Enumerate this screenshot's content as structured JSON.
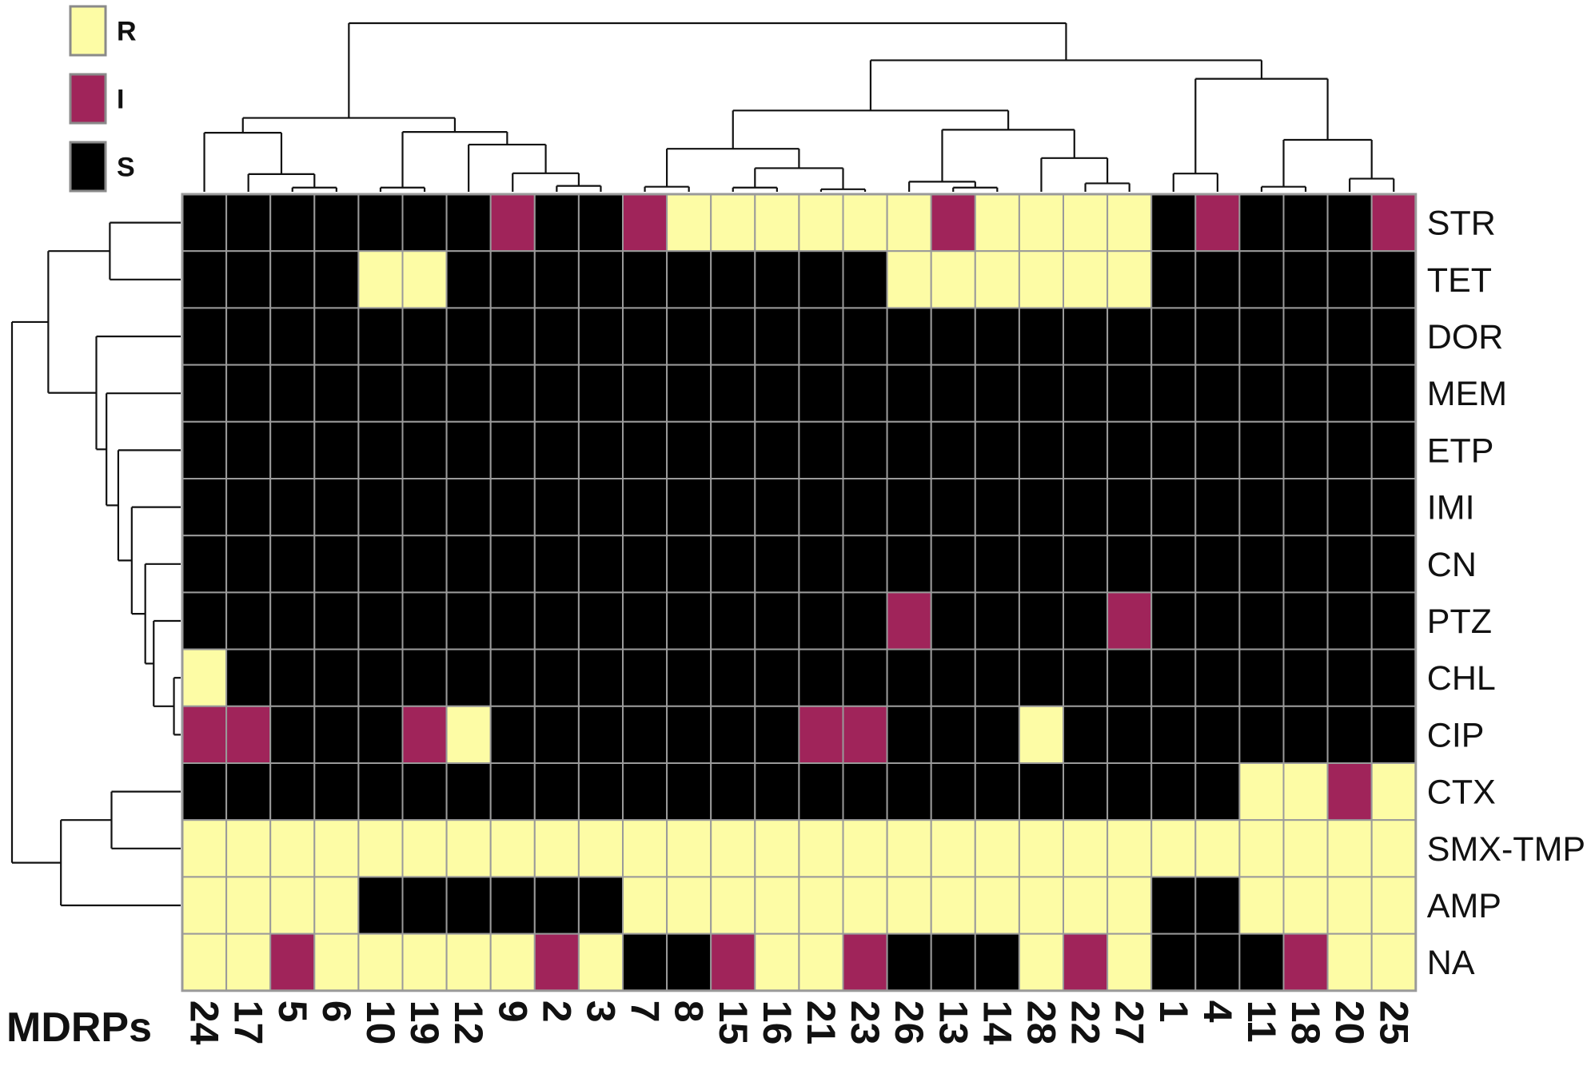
{
  "chart_data": {
    "type": "heatmap",
    "title": "",
    "xlabel": "MDRPs",
    "ylabel": "",
    "columns": [
      "24",
      "17",
      "5",
      "6",
      "10",
      "19",
      "12",
      "9",
      "2",
      "3",
      "7",
      "8",
      "15",
      "16",
      "21",
      "23",
      "26",
      "13",
      "14",
      "28",
      "22",
      "27",
      "1",
      "4",
      "11",
      "18",
      "20",
      "25"
    ],
    "rows": [
      "STR",
      "TET",
      "DOR",
      "MEM",
      "ETP",
      "IMI",
      "CN",
      "PTZ",
      "CHL",
      "CIP",
      "CTX",
      "SMX-TMP",
      "AMP",
      "NA"
    ],
    "values": [
      [
        "S",
        "S",
        "S",
        "S",
        "S",
        "S",
        "S",
        "I",
        "S",
        "S",
        "I",
        "R",
        "R",
        "R",
        "R",
        "R",
        "R",
        "I",
        "R",
        "R",
        "R",
        "R",
        "S",
        "I",
        "S",
        "S",
        "S",
        "I"
      ],
      [
        "S",
        "S",
        "S",
        "S",
        "R",
        "R",
        "S",
        "S",
        "S",
        "S",
        "S",
        "S",
        "S",
        "S",
        "S",
        "S",
        "R",
        "R",
        "R",
        "R",
        "R",
        "R",
        "S",
        "S",
        "S",
        "S",
        "S",
        "S"
      ],
      [
        "S",
        "S",
        "S",
        "S",
        "S",
        "S",
        "S",
        "S",
        "S",
        "S",
        "S",
        "S",
        "S",
        "S",
        "S",
        "S",
        "S",
        "S",
        "S",
        "S",
        "S",
        "S",
        "S",
        "S",
        "S",
        "S",
        "S",
        "S"
      ],
      [
        "S",
        "S",
        "S",
        "S",
        "S",
        "S",
        "S",
        "S",
        "S",
        "S",
        "S",
        "S",
        "S",
        "S",
        "S",
        "S",
        "S",
        "S",
        "S",
        "S",
        "S",
        "S",
        "S",
        "S",
        "S",
        "S",
        "S",
        "S"
      ],
      [
        "S",
        "S",
        "S",
        "S",
        "S",
        "S",
        "S",
        "S",
        "S",
        "S",
        "S",
        "S",
        "S",
        "S",
        "S",
        "S",
        "S",
        "S",
        "S",
        "S",
        "S",
        "S",
        "S",
        "S",
        "S",
        "S",
        "S",
        "S"
      ],
      [
        "S",
        "S",
        "S",
        "S",
        "S",
        "S",
        "S",
        "S",
        "S",
        "S",
        "S",
        "S",
        "S",
        "S",
        "S",
        "S",
        "S",
        "S",
        "S",
        "S",
        "S",
        "S",
        "S",
        "S",
        "S",
        "S",
        "S",
        "S"
      ],
      [
        "S",
        "S",
        "S",
        "S",
        "S",
        "S",
        "S",
        "S",
        "S",
        "S",
        "S",
        "S",
        "S",
        "S",
        "S",
        "S",
        "S",
        "S",
        "S",
        "S",
        "S",
        "S",
        "S",
        "S",
        "S",
        "S",
        "S",
        "S"
      ],
      [
        "S",
        "S",
        "S",
        "S",
        "S",
        "S",
        "S",
        "S",
        "S",
        "S",
        "S",
        "S",
        "S",
        "S",
        "S",
        "S",
        "I",
        "S",
        "S",
        "S",
        "S",
        "I",
        "S",
        "S",
        "S",
        "S",
        "S",
        "S"
      ],
      [
        "R",
        "S",
        "S",
        "S",
        "S",
        "S",
        "S",
        "S",
        "S",
        "S",
        "S",
        "S",
        "S",
        "S",
        "S",
        "S",
        "S",
        "S",
        "S",
        "S",
        "S",
        "S",
        "S",
        "S",
        "S",
        "S",
        "S",
        "S"
      ],
      [
        "I",
        "I",
        "S",
        "S",
        "S",
        "I",
        "R",
        "S",
        "S",
        "S",
        "S",
        "S",
        "S",
        "S",
        "I",
        "I",
        "S",
        "S",
        "S",
        "R",
        "S",
        "S",
        "S",
        "S",
        "S",
        "S",
        "S",
        "S"
      ],
      [
        "S",
        "S",
        "S",
        "S",
        "S",
        "S",
        "S",
        "S",
        "S",
        "S",
        "S",
        "S",
        "S",
        "S",
        "S",
        "S",
        "S",
        "S",
        "S",
        "S",
        "S",
        "S",
        "S",
        "S",
        "R",
        "R",
        "I",
        "R"
      ],
      [
        "R",
        "R",
        "R",
        "R",
        "R",
        "R",
        "R",
        "R",
        "R",
        "R",
        "R",
        "R",
        "R",
        "R",
        "R",
        "R",
        "R",
        "R",
        "R",
        "R",
        "R",
        "R",
        "R",
        "R",
        "R",
        "R",
        "R",
        "R"
      ],
      [
        "R",
        "R",
        "R",
        "R",
        "S",
        "S",
        "S",
        "S",
        "S",
        "S",
        "R",
        "R",
        "R",
        "R",
        "R",
        "R",
        "R",
        "R",
        "R",
        "R",
        "R",
        "R",
        "S",
        "S",
        "R",
        "R",
        "R",
        "R"
      ],
      [
        "R",
        "R",
        "I",
        "R",
        "R",
        "R",
        "R",
        "R",
        "I",
        "R",
        "S",
        "S",
        "I",
        "R",
        "R",
        "I",
        "S",
        "S",
        "S",
        "R",
        "I",
        "R",
        "S",
        "S",
        "S",
        "I",
        "R",
        "R"
      ]
    ],
    "legend": [
      {
        "key": "R",
        "label": "R",
        "color": "#fdfca5"
      },
      {
        "key": "I",
        "label": "I",
        "color": "#a0245a"
      },
      {
        "key": "S",
        "label": "S",
        "color": "#000000"
      }
    ],
    "legend_position": "top-left",
    "grid": true,
    "gridColor": "#9a9a9a",
    "column_dendrogram": true,
    "row_dendrogram": true
  }
}
